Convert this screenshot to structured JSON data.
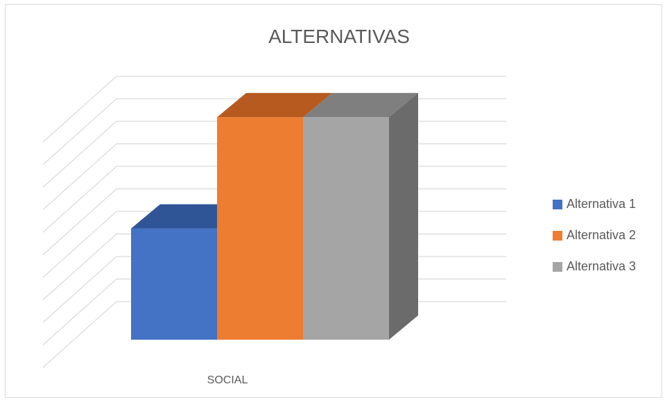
{
  "chart_data": {
    "type": "bar",
    "style": "3d-clustered-column",
    "title": "ALTERNATIVAS",
    "categories": [
      "SOCIAL"
    ],
    "series": [
      {
        "name": "Alternativa 1",
        "values": [
          5
        ],
        "color": "#4472C4",
        "top_color": "#2F5597"
      },
      {
        "name": "Alternativa 2",
        "values": [
          10
        ],
        "color": "#ED7D31",
        "top_color": "#B65A1F"
      },
      {
        "name": "Alternativa 3",
        "values": [
          10
        ],
        "color": "#A5A5A5",
        "top_color": "#7F7F7F",
        "side_color": "#6B6B6B"
      }
    ],
    "ylim": [
      0,
      12
    ],
    "grid": true,
    "legend_position": "right",
    "axis_color": "#d9d9d9",
    "text_color": "#595959"
  }
}
